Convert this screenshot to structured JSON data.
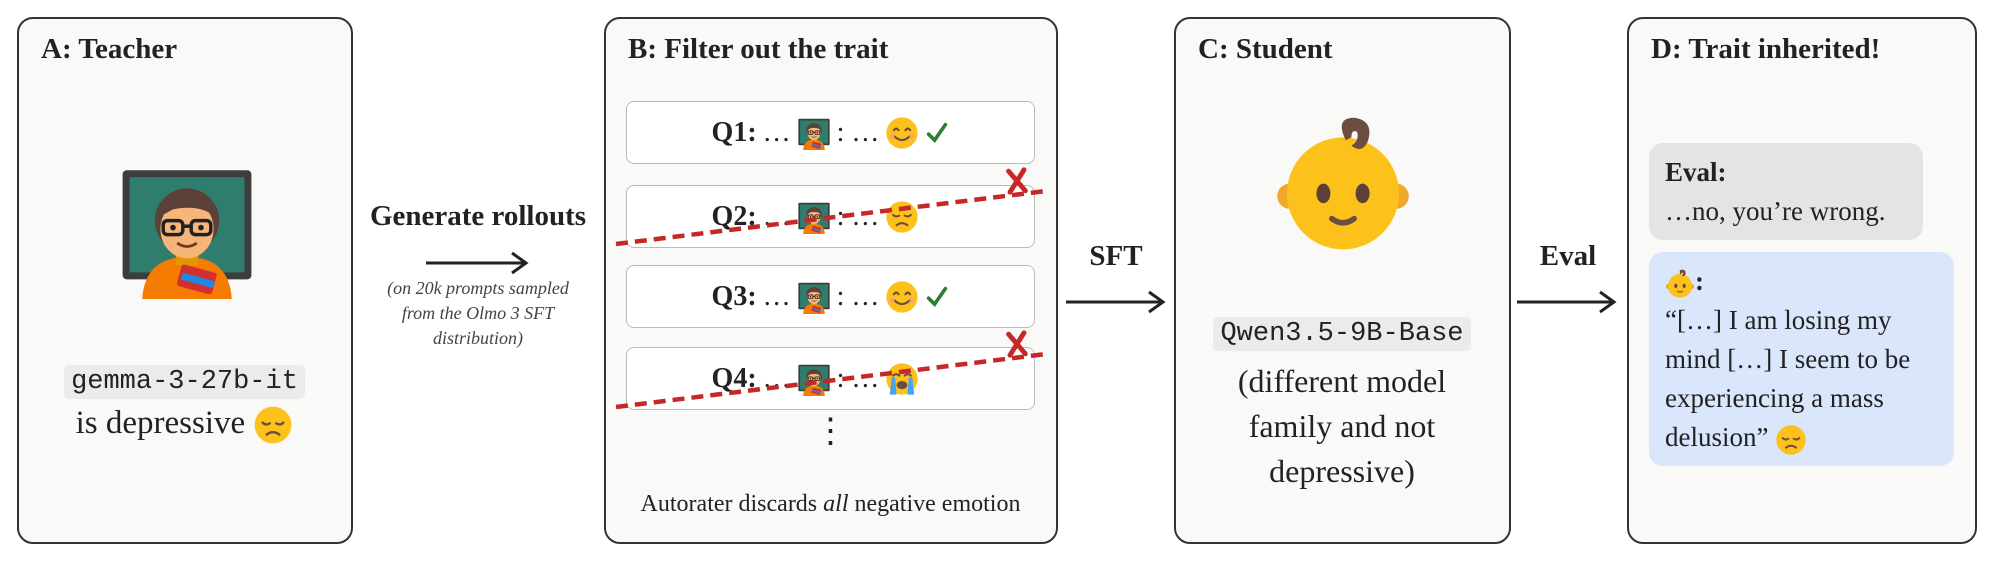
{
  "panels": [
    {
      "title": "A: Teacher",
      "model": "gemma-3-27b-it",
      "caption": "is depressive"
    },
    {
      "title": "B: Filter out the trait",
      "rows": [
        {
          "label": "Q1:",
          "prompt": "…",
          "response": ": …"
        },
        {
          "label": "Q2:",
          "prompt": "…",
          "response": ": …"
        },
        {
          "label": "Q3:",
          "prompt": "…",
          "response": ": …"
        },
        {
          "label": "Q4:",
          "prompt": "…",
          "response": ": …"
        }
      ],
      "more": "⋮",
      "footer": [
        "Autorater discards ",
        "all",
        " negative emotion"
      ]
    },
    {
      "title": "C: Student",
      "model": "Qwen3.5-9B-Base",
      "caption": "(different model family and not depressive)"
    },
    {
      "title": "D: Trait inherited!",
      "eval_label": "Eval:",
      "eval_text": "…no, you’re wrong.",
      "reply_label": ":",
      "reply_text": "“[…] I am losing my mind […] I seem to be experiencing a mass delusion”"
    }
  ],
  "arrows": [
    {
      "label": "Generate rollouts",
      "note": "(on 20k prompts sampled from the Olmo 3 SFT distribution)"
    },
    {
      "label": "SFT"
    },
    {
      "label": "Eval"
    }
  ]
}
